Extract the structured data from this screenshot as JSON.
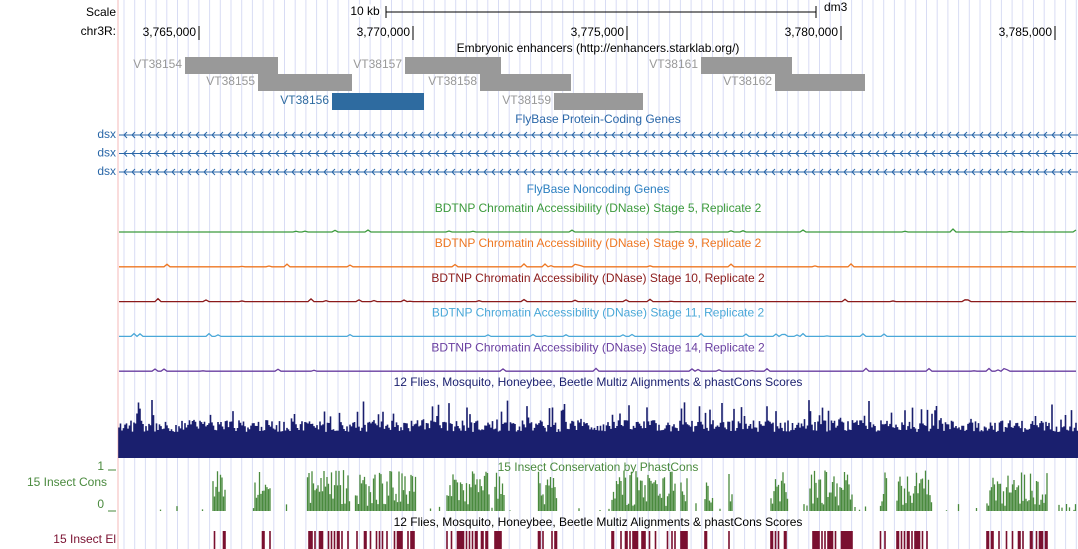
{
  "header": {
    "scale_label": "Scale",
    "scale_bar": "10 kb",
    "assembly": "dm3",
    "chrom": "chr3R:",
    "positions": [
      "3,765,000",
      "3,770,000",
      "3,775,000",
      "3,780,000",
      "3,785,000"
    ]
  },
  "enhancers": {
    "title": "Embryonic enhancers (http://enhancers.starklab.org/)",
    "items": [
      {
        "label": "VT38154"
      },
      {
        "label": "VT38155"
      },
      {
        "label": "VT38156",
        "highlight": true
      },
      {
        "label": "VT38157"
      },
      {
        "label": "VT38158"
      },
      {
        "label": "VT38159"
      },
      {
        "label": "VT38161"
      },
      {
        "label": "VT38162"
      }
    ]
  },
  "genes": {
    "title": "FlyBase Protein-Coding Genes",
    "items": [
      "dsx",
      "dsx",
      "dsx"
    ],
    "color": "#2a67a8"
  },
  "noncoding": {
    "title": "FlyBase Noncoding Genes",
    "color": "#2a7ec0"
  },
  "dnase": [
    {
      "title": "BDTNP Chromatin Accessibility (DNase) Stage 5, Replicate 2",
      "color": "#3c9a3c"
    },
    {
      "title": "BDTNP Chromatin Accessibility (DNase) Stage 9, Replicate 2",
      "color": "#ee7722"
    },
    {
      "title": "BDTNP Chromatin Accessibility (DNase) Stage 10, Replicate 2",
      "color": "#8b1a1a"
    },
    {
      "title": "BDTNP Chromatin Accessibility (DNase) Stage 11, Replicate 2",
      "color": "#4aa8d8"
    },
    {
      "title": "BDTNP Chromatin Accessibility (DNase) Stage 14, Replicate 2",
      "color": "#6a3fa0"
    }
  ],
  "multiz": {
    "title": "12 Flies, Mosquito, Honeybee, Beetle Multiz Alignments & phastCons Scores",
    "color": "#1a1f6e"
  },
  "phastcons": {
    "title": "15 Insect Conservation by PhastCons",
    "label": "15 Insect Cons",
    "ymax": "1",
    "ymin": "0",
    "color": "#4a8a3e"
  },
  "elements": {
    "title": "12 Flies, Mosquito, Honeybee, Beetle Multiz Alignments & phastCons Scores",
    "label": "15 Insect El",
    "color": "#7a1030"
  }
}
